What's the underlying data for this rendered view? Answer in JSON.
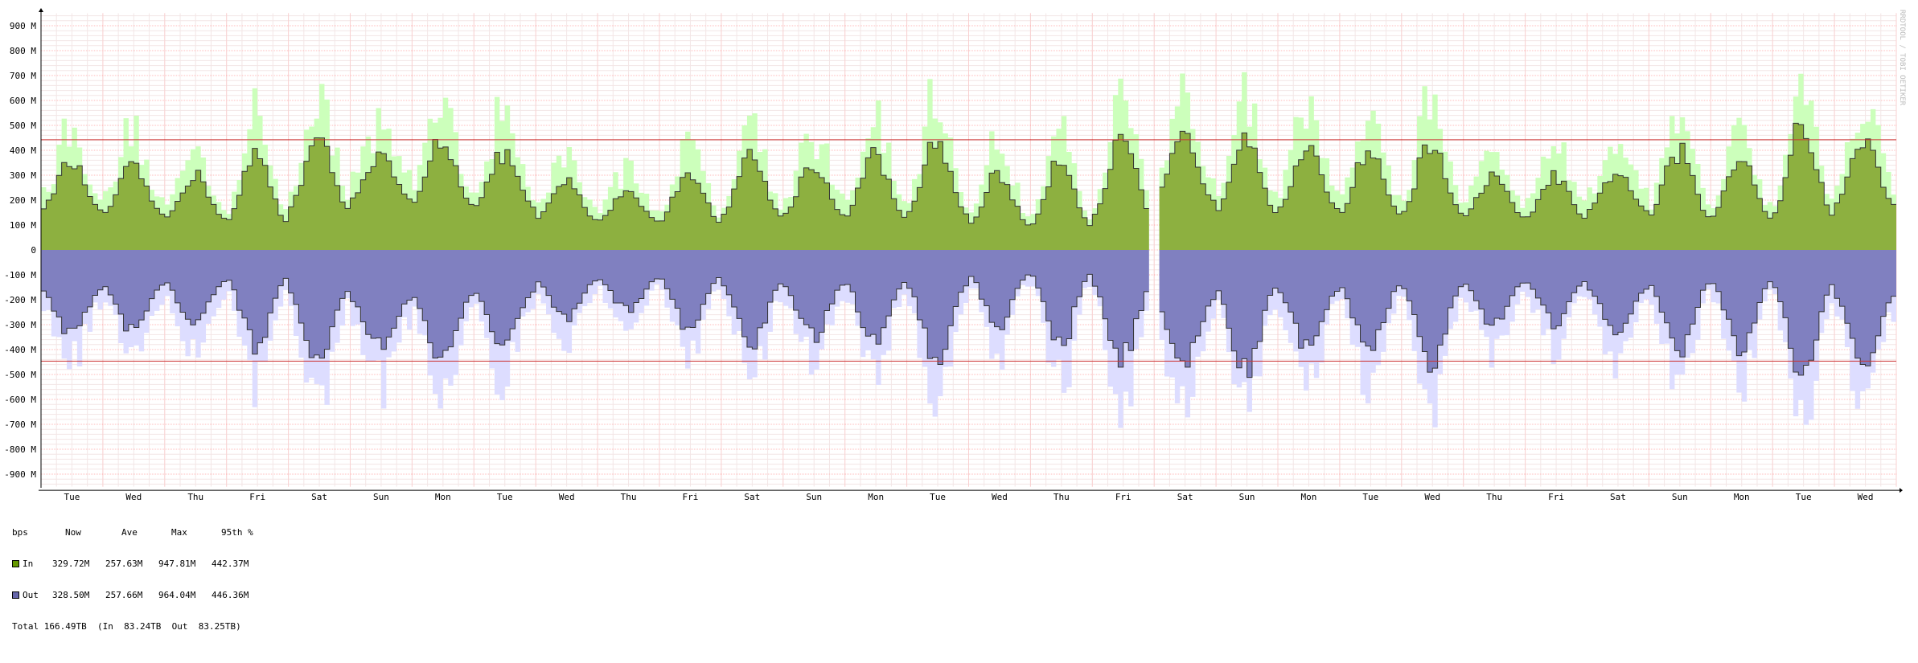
{
  "chart_data": {
    "type": "area",
    "title": "",
    "ylabel": "bps",
    "y_unit": "bps",
    "ylim": [
      -950000000,
      950000000
    ],
    "y_ticks": [
      "900 M",
      "800 M",
      "700 M",
      "600 M",
      "500 M",
      "400 M",
      "300 M",
      "200 M",
      "100 M",
      "0",
      "-100 M",
      "-200 M",
      "-300 M",
      "-400 M",
      "-500 M",
      "-600 M",
      "-700 M",
      "-800 M",
      "-900 M"
    ],
    "y_tick_values": [
      900,
      800,
      700,
      600,
      500,
      400,
      300,
      200,
      100,
      0,
      -100,
      -200,
      -300,
      -400,
      -500,
      -600,
      -700,
      -800,
      -900
    ],
    "x_day_labels": [
      "Tue",
      "Wed",
      "Thu",
      "Fri",
      "Sat",
      "Sun",
      "Mon",
      "Tue",
      "Wed",
      "Thu",
      "Fri",
      "Sat",
      "Sun",
      "Mon",
      "Tue",
      "Wed",
      "Thu",
      "Fri",
      "Sat",
      "Sun",
      "Mon",
      "Tue",
      "Wed",
      "Thu",
      "Fri",
      "Sat",
      "Sun",
      "Mon",
      "Tue",
      "Wed"
    ],
    "percentile_95_line_M": {
      "in": 442.37,
      "out": 446.36
    },
    "gap_day_index": 18,
    "series": [
      {
        "name": "In",
        "color": "#669900",
        "fill": "#8db040",
        "max_fill": "#ccffbb",
        "daily_avg_M": [
          290,
          260,
          230,
          205,
          300,
          370,
          330,
          310,
          220,
          210,
          200,
          245,
          255,
          235,
          260,
          180,
          175,
          240,
          360,
          270,
          300,
          260,
          265,
          240,
          230,
          285,
          240,
          230,
          250,
          330
        ],
        "daily_peak_M": [
          380,
          360,
          330,
          420,
          480,
          400,
          490,
          420,
          300,
          260,
          360,
          420,
          380,
          420,
          480,
          340,
          420,
          480,
          490,
          540,
          430,
          450,
          480,
          320,
          320,
          340,
          440,
          430,
          560,
          470
        ]
      },
      {
        "name": "Out",
        "color": "#6666aa",
        "fill": "#8080c0",
        "max_fill": "#ddddff",
        "daily_avg_M": [
          -290,
          -255,
          -230,
          -205,
          -300,
          -365,
          -330,
          -305,
          -225,
          -210,
          -200,
          -245,
          -255,
          -235,
          -260,
          -180,
          -175,
          -245,
          -360,
          -275,
          -300,
          -260,
          -265,
          -240,
          -230,
          -285,
          -245,
          -230,
          -250,
          -335
        ],
        "daily_peak_M": [
          -380,
          -360,
          -330,
          -420,
          -490,
          -410,
          -490,
          -420,
          -300,
          -260,
          -360,
          -420,
          -380,
          -420,
          -480,
          -340,
          -420,
          -480,
          -490,
          -540,
          -430,
          -450,
          -510,
          -320,
          -320,
          -350,
          -440,
          -430,
          -560,
          -480
        ]
      }
    ]
  },
  "legend": {
    "header": {
      "unit": "bps",
      "now": "Now",
      "ave": "Ave",
      "max": "Max",
      "p95": "95th %"
    },
    "rows": [
      {
        "label": "In",
        "color": "#669900",
        "now": "329.72M",
        "ave": "257.63M",
        "max": "947.81M",
        "p95": "442.37M"
      },
      {
        "label": "Out",
        "color": "#6666aa",
        "now": "328.50M",
        "ave": "257.66M",
        "max": "964.04M",
        "p95": "446.36M"
      }
    ],
    "total": "Total 166.49TB  (In  83.24TB  Out  83.25TB)"
  },
  "watermark": "RRDTOOL / TOBI OETIKER"
}
